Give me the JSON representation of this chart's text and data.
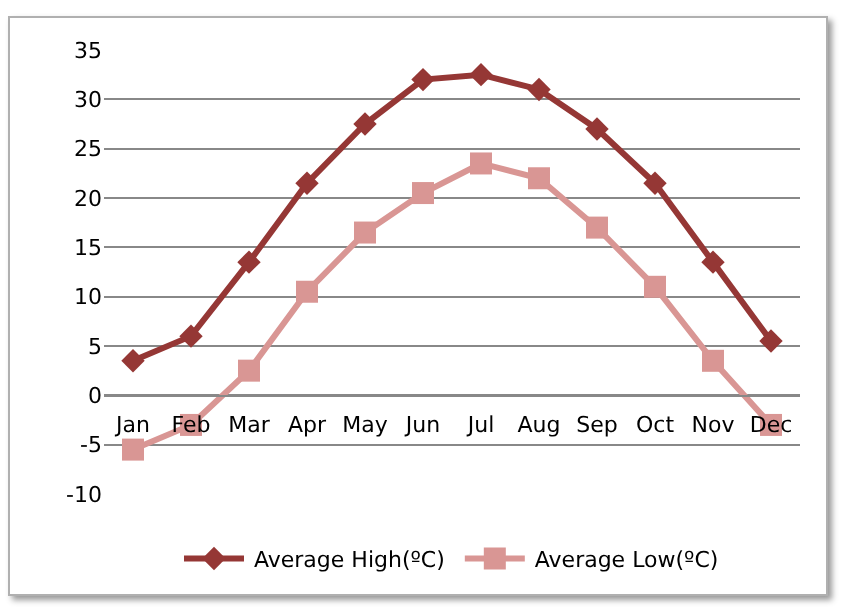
{
  "chart_data": {
    "type": "line",
    "categories": [
      "Jan",
      "Feb",
      "Mar",
      "Apr",
      "May",
      "Jun",
      "Jul",
      "Aug",
      "Sep",
      "Oct",
      "Nov",
      "Dec"
    ],
    "series": [
      {
        "name": "Average High(ºC)",
        "color": "#953735",
        "marker": "diamond",
        "values": [
          3.5,
          6,
          13.5,
          21.5,
          27.5,
          32,
          32.5,
          31,
          27,
          21.5,
          13.5,
          5.5
        ]
      },
      {
        "name": "Average Low(ºC)",
        "color": "#d99694",
        "marker": "square",
        "values": [
          -5.5,
          -3,
          2.5,
          10.5,
          16.5,
          20.5,
          23.5,
          22,
          17,
          11,
          3.5,
          -3
        ]
      }
    ],
    "ylim": [
      -10,
      35
    ],
    "yticks": [
      -10,
      -5,
      0,
      5,
      10,
      15,
      20,
      25,
      30,
      35
    ],
    "grid": "y",
    "legend": "bottom",
    "line_style": "solid"
  }
}
